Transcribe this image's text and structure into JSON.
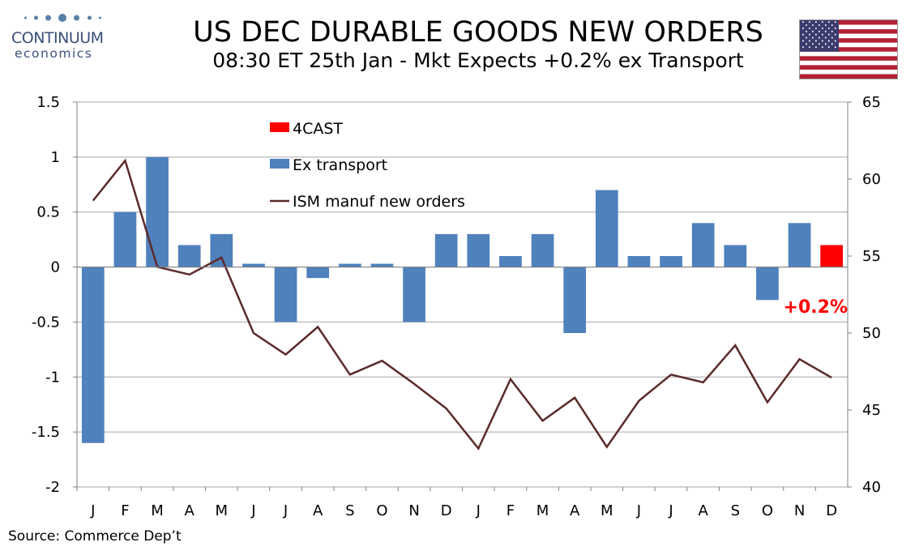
{
  "header": {
    "title": "US DEC DURABLE GOODS NEW ORDERS",
    "subtitle": "08:30 ET 25th Jan - Mkt Expects +0.2% ex Transport"
  },
  "logo": {
    "name": "CONTINUUM",
    "sub": "economics",
    "icon": "logo-dots"
  },
  "flag": {
    "icon": "us-flag-icon",
    "colors": {
      "red": "#b22234",
      "white": "#ffffff",
      "blue": "#3c3b6e"
    }
  },
  "source": "Source: Commerce Dep’t",
  "annotation": "+0.2%",
  "chart_data": {
    "type": "bar",
    "categories": [
      "J",
      "F",
      "M",
      "A",
      "M",
      "J",
      "J",
      "A",
      "S",
      "O",
      "N",
      "D",
      "J",
      "F",
      "M",
      "A",
      "M",
      "J",
      "J",
      "A",
      "S",
      "O",
      "N",
      "D"
    ],
    "series": [
      {
        "name": "Ex transport",
        "type": "bar",
        "axis": "left",
        "color": "#4f81bd",
        "values": [
          -1.6,
          0.5,
          1.0,
          0.2,
          0.3,
          0.03,
          -0.5,
          -0.1,
          0.03,
          0.03,
          -0.5,
          0.3,
          0.3,
          0.1,
          0.3,
          -0.6,
          0.7,
          0.1,
          0.1,
          0.4,
          0.2,
          -0.3,
          0.4,
          null
        ]
      },
      {
        "name": "4CAST",
        "type": "bar",
        "axis": "left",
        "color": "#ff0000",
        "values": [
          null,
          null,
          null,
          null,
          null,
          null,
          null,
          null,
          null,
          null,
          null,
          null,
          null,
          null,
          null,
          null,
          null,
          null,
          null,
          null,
          null,
          null,
          null,
          0.2
        ]
      },
      {
        "name": "ISM manuf new orders",
        "type": "line",
        "axis": "right",
        "color": "#5c2a2a",
        "values": [
          58.6,
          61.2,
          54.3,
          53.8,
          54.9,
          50.0,
          48.6,
          50.4,
          47.3,
          48.2,
          46.7,
          45.1,
          42.5,
          47.0,
          44.3,
          45.8,
          42.6,
          45.6,
          47.3,
          46.8,
          49.2,
          45.5,
          48.3,
          47.1
        ]
      }
    ],
    "y_left": {
      "lim": [
        -2,
        1.5
      ],
      "ticks": [
        "-2",
        "-1.5",
        "-1",
        "-0.5",
        "0",
        "0.5",
        "1",
        "1.5"
      ],
      "tick_values": [
        -2,
        -1.5,
        -1,
        -0.5,
        0,
        0.5,
        1,
        1.5
      ]
    },
    "y_right": {
      "lim": [
        40,
        65
      ],
      "ticks": [
        "40",
        "45",
        "50",
        "55",
        "60",
        "65"
      ],
      "tick_values": [
        40,
        45,
        50,
        55,
        60,
        65
      ]
    },
    "legend": {
      "placement": "top-center",
      "entries": [
        "4CAST",
        "Ex transport",
        "ISM manuf new orders"
      ]
    },
    "grid": true,
    "grid_color": "#a6a6a6"
  }
}
